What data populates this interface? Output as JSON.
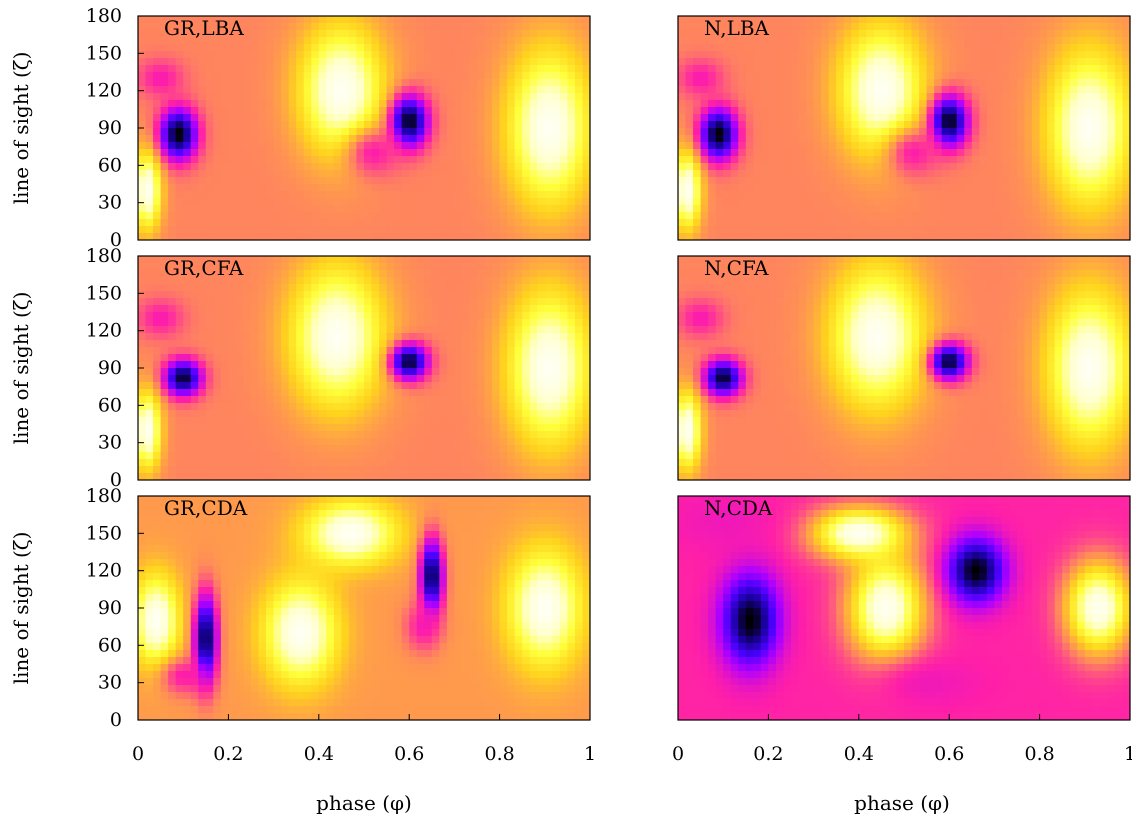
{
  "chart_data": {
    "type": "heatmap",
    "colormap": [
      "#000000",
      "#1a00a0",
      "#4b00ff",
      "#b000ff",
      "#ff1fa8",
      "#ff8a5a",
      "#ffd21e",
      "#ffff3a",
      "#ffffc8",
      "#ffffff"
    ],
    "xlabel": "phase (φ)",
    "ylabel": "line of sight (ζ)",
    "xlim": [
      0,
      1
    ],
    "ylim": [
      0,
      180
    ],
    "xticks": [
      "0",
      "0.2",
      "0.4",
      "0.6",
      "0.8",
      "1"
    ],
    "yticks": [
      "0",
      "30",
      "60",
      "90",
      "120",
      "150",
      "180"
    ],
    "layout": "3 rows x 2 columns, shared axes",
    "panels": [
      {
        "label": "GR,LBA",
        "background": 0.55,
        "features": [
          {
            "kind": "bright",
            "x": 0.45,
            "y": 120,
            "rx": 0.09,
            "ry": 50
          },
          {
            "kind": "bright",
            "x": 0.91,
            "y": 90,
            "rx": 0.09,
            "ry": 60
          },
          {
            "kind": "bright",
            "x": 0.02,
            "y": 40,
            "rx": 0.03,
            "ry": 30
          },
          {
            "kind": "dark",
            "x": 0.09,
            "y": 85,
            "rx": 0.04,
            "ry": 20,
            "intensity": 1.0
          },
          {
            "kind": "dark",
            "x": 0.6,
            "y": 95,
            "rx": 0.04,
            "ry": 20,
            "intensity": 1.0
          },
          {
            "kind": "magenta",
            "x": 0.05,
            "y": 130,
            "rx": 0.05,
            "ry": 15
          },
          {
            "kind": "magenta",
            "x": 0.52,
            "y": 70,
            "rx": 0.06,
            "ry": 20
          }
        ]
      },
      {
        "label": "N,LBA",
        "background": 0.55,
        "features": [
          {
            "kind": "bright",
            "x": 0.45,
            "y": 120,
            "rx": 0.09,
            "ry": 50
          },
          {
            "kind": "bright",
            "x": 0.91,
            "y": 90,
            "rx": 0.09,
            "ry": 60
          },
          {
            "kind": "bright",
            "x": 0.02,
            "y": 40,
            "rx": 0.03,
            "ry": 30
          },
          {
            "kind": "dark",
            "x": 0.09,
            "y": 85,
            "rx": 0.04,
            "ry": 20,
            "intensity": 1.0
          },
          {
            "kind": "dark",
            "x": 0.6,
            "y": 95,
            "rx": 0.04,
            "ry": 20,
            "intensity": 1.0
          },
          {
            "kind": "magenta",
            "x": 0.05,
            "y": 130,
            "rx": 0.05,
            "ry": 15
          },
          {
            "kind": "magenta",
            "x": 0.52,
            "y": 70,
            "rx": 0.06,
            "ry": 20
          }
        ]
      },
      {
        "label": "GR,CFA",
        "background": 0.55,
        "features": [
          {
            "kind": "bright",
            "x": 0.44,
            "y": 115,
            "rx": 0.1,
            "ry": 55
          },
          {
            "kind": "bright",
            "x": 0.91,
            "y": 90,
            "rx": 0.09,
            "ry": 60
          },
          {
            "kind": "bright",
            "x": 0.02,
            "y": 40,
            "rx": 0.03,
            "ry": 30
          },
          {
            "kind": "dark",
            "x": 0.1,
            "y": 82,
            "rx": 0.04,
            "ry": 14,
            "intensity": 0.95
          },
          {
            "kind": "dark",
            "x": 0.6,
            "y": 95,
            "rx": 0.04,
            "ry": 14,
            "intensity": 0.95
          },
          {
            "kind": "magenta",
            "x": 0.05,
            "y": 130,
            "rx": 0.05,
            "ry": 15
          }
        ]
      },
      {
        "label": "N,CFA",
        "background": 0.55,
        "features": [
          {
            "kind": "bright",
            "x": 0.44,
            "y": 115,
            "rx": 0.1,
            "ry": 55
          },
          {
            "kind": "bright",
            "x": 0.91,
            "y": 90,
            "rx": 0.09,
            "ry": 60
          },
          {
            "kind": "bright",
            "x": 0.02,
            "y": 40,
            "rx": 0.03,
            "ry": 30
          },
          {
            "kind": "dark",
            "x": 0.1,
            "y": 82,
            "rx": 0.04,
            "ry": 14,
            "intensity": 0.95
          },
          {
            "kind": "dark",
            "x": 0.6,
            "y": 95,
            "rx": 0.04,
            "ry": 14,
            "intensity": 0.95
          },
          {
            "kind": "magenta",
            "x": 0.05,
            "y": 130,
            "rx": 0.05,
            "ry": 15
          }
        ]
      },
      {
        "label": "GR,CDA",
        "background": 0.58,
        "features": [
          {
            "kind": "bright",
            "x": 0.04,
            "y": 80,
            "rx": 0.05,
            "ry": 35
          },
          {
            "kind": "bright",
            "x": 0.36,
            "y": 70,
            "rx": 0.08,
            "ry": 40
          },
          {
            "kind": "bright",
            "x": 0.47,
            "y": 150,
            "rx": 0.1,
            "ry": 25
          },
          {
            "kind": "bright",
            "x": 0.9,
            "y": 90,
            "rx": 0.08,
            "ry": 45
          },
          {
            "kind": "dark",
            "x": 0.15,
            "y": 65,
            "rx": 0.025,
            "ry": 35,
            "intensity": 0.95
          },
          {
            "kind": "dark",
            "x": 0.65,
            "y": 115,
            "rx": 0.025,
            "ry": 30,
            "intensity": 0.95
          },
          {
            "kind": "magenta",
            "x": 0.1,
            "y": 35,
            "rx": 0.05,
            "ry": 15
          },
          {
            "kind": "magenta",
            "x": 0.63,
            "y": 75,
            "rx": 0.04,
            "ry": 20
          }
        ]
      },
      {
        "label": "N,CDA",
        "background": 0.45,
        "features": [
          {
            "kind": "bright",
            "x": 0.46,
            "y": 90,
            "rx": 0.08,
            "ry": 40
          },
          {
            "kind": "bright",
            "x": 0.93,
            "y": 90,
            "rx": 0.07,
            "ry": 35
          },
          {
            "kind": "bright",
            "x": 0.4,
            "y": 150,
            "rx": 0.1,
            "ry": 20
          },
          {
            "kind": "dark",
            "x": 0.16,
            "y": 80,
            "rx": 0.06,
            "ry": 35,
            "intensity": 1.0
          },
          {
            "kind": "dark",
            "x": 0.66,
            "y": 120,
            "rx": 0.06,
            "ry": 25,
            "intensity": 1.0
          },
          {
            "kind": "magenta",
            "x": 0.1,
            "y": 160,
            "rx": 0.12,
            "ry": 25
          },
          {
            "kind": "magenta",
            "x": 0.55,
            "y": 30,
            "rx": 0.12,
            "ry": 20
          }
        ]
      }
    ]
  }
}
